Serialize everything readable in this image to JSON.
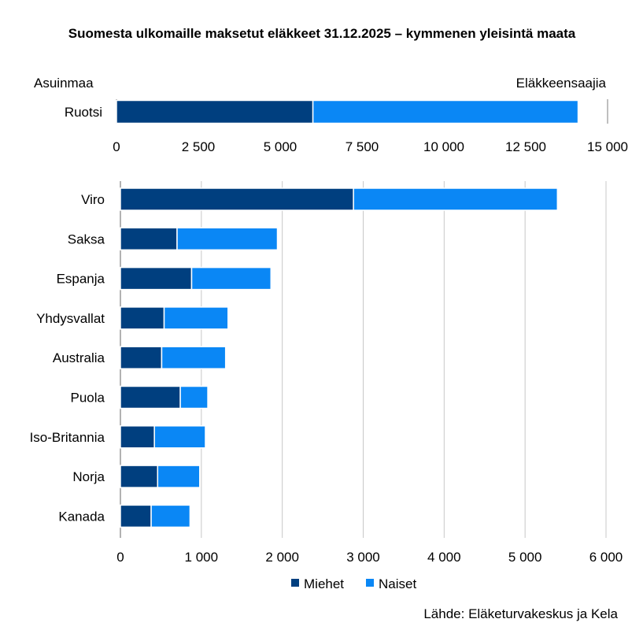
{
  "chart_data": [
    {
      "type": "bar",
      "orientation": "horizontal",
      "stacked": true,
      "title": "Suomesta ulkomaille maksetut eläkkeet 31.12.2025 – kymmenen yleisintä maata",
      "ylabel": "Asuinmaa",
      "xlabel": "Eläkkeensaajia",
      "categories": [
        "Ruotsi"
      ],
      "series": [
        {
          "name": "Miehet",
          "values": [
            6000
          ]
        },
        {
          "name": "Naiset",
          "values": [
            8100
          ]
        }
      ],
      "xlim": [
        0,
        15000
      ],
      "ticks": [
        0,
        2500,
        5000,
        7500,
        10000,
        12500,
        15000
      ],
      "tick_labels": [
        "0",
        "2 500",
        "5 000",
        "7 500",
        "10 000",
        "12 500",
        "15 000"
      ],
      "grid": false
    },
    {
      "type": "bar",
      "orientation": "horizontal",
      "stacked": true,
      "categories": [
        "Viro",
        "Saksa",
        "Espanja",
        "Yhdysvallat",
        "Australia",
        "Puola",
        "Iso-Britannia",
        "Norja",
        "Kanada"
      ],
      "series": [
        {
          "name": "Miehet",
          "values": [
            2880,
            700,
            880,
            540,
            510,
            740,
            420,
            460,
            380
          ]
        },
        {
          "name": "Naiset",
          "values": [
            2520,
            1240,
            980,
            790,
            790,
            340,
            630,
            520,
            480
          ]
        }
      ],
      "xlim": [
        0,
        6000
      ],
      "ticks": [
        0,
        1000,
        2000,
        3000,
        4000,
        5000,
        6000
      ],
      "tick_labels": [
        "0",
        "1 000",
        "2 000",
        "3 000",
        "4 000",
        "5 000",
        "6 000"
      ],
      "grid": true
    }
  ],
  "legend": {
    "items": [
      {
        "label": "Miehet",
        "color": "#003f7f"
      },
      {
        "label": "Naiset",
        "color": "#0a87f5"
      }
    ]
  },
  "source": "Lähde: Eläketurvakeskus ja Kela",
  "colors": {
    "men": "#003f7f",
    "women": "#0a87f5",
    "grid": "#c8c8c8",
    "axis": "#7f7f7f"
  }
}
